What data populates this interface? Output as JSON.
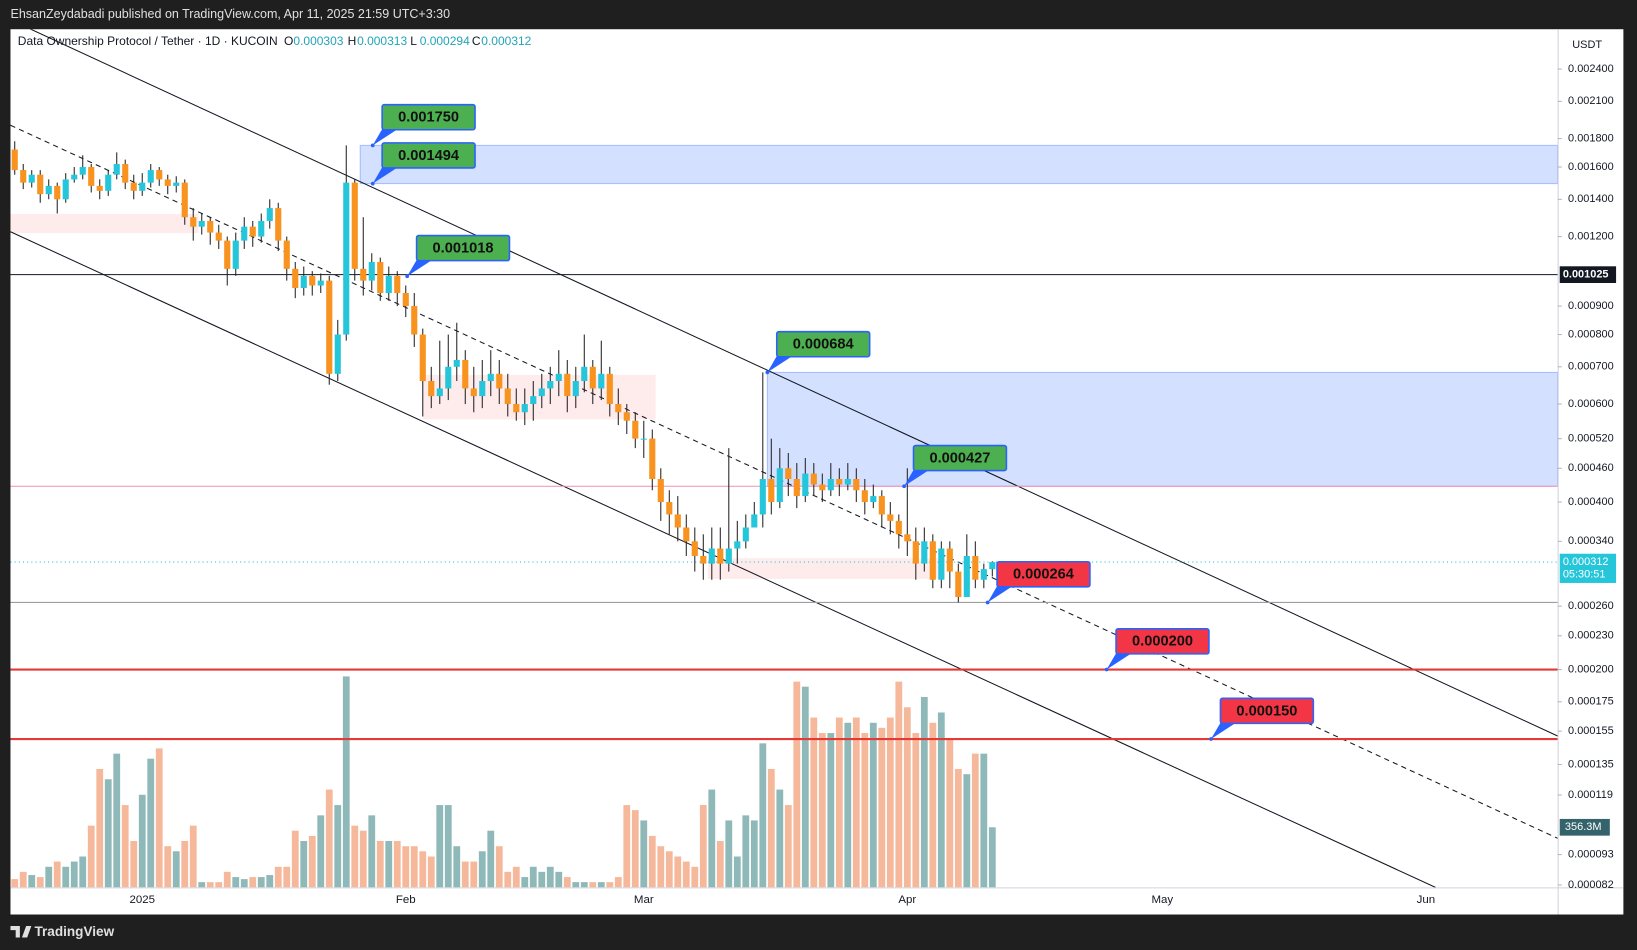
{
  "header": "EhsanZeydabadi published on TradingView.com, Apr 11, 2025 21:59 UTC+3:30",
  "footer": "TradingView",
  "chart_data": {
    "type": "candlestick",
    "symbol": "Data Ownership Protocol / Tether · 1D · KUCOIN",
    "ohlc_keys": [
      "O",
      "H",
      "L",
      "C"
    ],
    "currency": "USDT",
    "countdown": "05:30:51",
    "log_scale": true,
    "grid": false,
    "up_color": "#26c6da",
    "down_color": "#f7931e",
    "volume_up_color": "#8fb9b9",
    "volume_down_color": "#f6b89b",
    "ylim": [
      8.12e-05,
      0.00283
    ],
    "yticks": [
      {
        "value": 0.0024,
        "label": "0.002400"
      },
      {
        "value": 0.0021,
        "label": "0.002100"
      },
      {
        "value": 0.0018,
        "label": "0.001800"
      },
      {
        "value": 0.0016,
        "label": "0.001600"
      },
      {
        "value": 0.0014,
        "label": "0.001400"
      },
      {
        "value": 0.0012,
        "label": "0.001200"
      },
      {
        "value": 0.0009,
        "label": "0.000900"
      },
      {
        "value": 0.0008,
        "label": "0.000800"
      },
      {
        "value": 0.0007,
        "label": "0.000700"
      },
      {
        "value": 0.0006,
        "label": "0.000600"
      },
      {
        "value": 0.00052,
        "label": "0.000520"
      },
      {
        "value": 0.00046,
        "label": "0.000460"
      },
      {
        "value": 0.0004,
        "label": "0.000400"
      },
      {
        "value": 0.00034,
        "label": "0.000340"
      },
      {
        "value": 0.00026,
        "label": "0.000260"
      },
      {
        "value": 0.00023,
        "label": "0.000230"
      },
      {
        "value": 0.0002,
        "label": "0.000200"
      },
      0.000175,
      0.000155,
      0.000135,
      0.000119,
      9.3e-05,
      8.2e-05
    ],
    "volume_ylim": [
      0,
      1300
    ],
    "volume_label": "356.3M",
    "categories": [
      null,
      null,
      null,
      null,
      null,
      null,
      null,
      null,
      null,
      null,
      null,
      null,
      null,
      null,
      null,
      "2025",
      null,
      null,
      null,
      null,
      null,
      null,
      null,
      null,
      null,
      null,
      null,
      null,
      null,
      null,
      null,
      null,
      null,
      null,
      null,
      null,
      null,
      null,
      null,
      null,
      null,
      null,
      null,
      null,
      null,
      null,
      "Feb",
      null,
      null,
      null,
      null,
      null,
      null,
      null,
      null,
      null,
      null,
      null,
      null,
      null,
      null,
      null,
      null,
      null,
      null,
      null,
      null,
      null,
      null,
      null,
      null,
      null,
      null,
      null,
      "Mar",
      null,
      null,
      null,
      null,
      null,
      null,
      null,
      null,
      null,
      null,
      null,
      null,
      null,
      null,
      null,
      null,
      null,
      null,
      null,
      null,
      null,
      null,
      null,
      null,
      null,
      null,
      null,
      null,
      null,
      null,
      "Apr",
      null,
      null,
      null,
      null,
      null,
      null,
      null,
      null,
      null,
      null,
      null,
      null,
      null,
      null,
      null,
      null,
      null,
      null,
      null,
      null,
      null,
      null,
      null,
      null,
      null,
      null,
      null,
      null,
      null,
      "May",
      null,
      null,
      null,
      null,
      null,
      null,
      null,
      null,
      null,
      null,
      null,
      null,
      null,
      null,
      null,
      null,
      null,
      null,
      null,
      null,
      null,
      null,
      null,
      null,
      null,
      null,
      null,
      null,
      null,
      null,
      "Jun",
      null,
      null,
      null,
      null,
      null,
      null,
      null,
      null,
      null,
      null,
      null,
      null,
      null,
      null,
      null
    ],
    "open": [
      0.00172,
      0.00158,
      0.0015,
      0.00155,
      0.00143,
      0.00148,
      0.0014,
      0.00152,
      0.00155,
      0.0016,
      0.00148,
      0.00145,
      0.00155,
      0.00162,
      0.0015,
      0.00145,
      0.0015,
      0.00158,
      0.00152,
      0.00148,
      0.0015,
      0.0013,
      0.00125,
      0.00128,
      0.00122,
      0.00118,
      0.00105,
      0.00118,
      0.00125,
      0.0012,
      0.00128,
      0.00135,
      0.00118,
      0.00105,
      0.00097,
      0.00102,
      0.00098,
      0.001,
      0.00068,
      0.0008,
      0.0015,
      0.00105,
      0.001,
      0.00108,
      0.00095,
      0.00102,
      0.00095,
      0.0009,
      0.0008,
      0.00066,
      0.00062,
      0.00064,
      0.0007,
      0.00072,
      0.00064,
      0.00062,
      0.00066,
      0.00068,
      0.00064,
      0.0006,
      0.00058,
      0.0006,
      0.00062,
      0.00064,
      0.00066,
      0.00068,
      0.00062,
      0.00066,
      0.0007,
      0.00064,
      0.00068,
      0.0006,
      0.00058,
      0.00056,
      0.00052,
      0.00052,
      0.00044,
      0.0004,
      0.00038,
      0.00036,
      0.00034,
      0.00032,
      0.00031,
      0.00033,
      0.00031,
      0.00033,
      0.00034,
      0.00036,
      0.00038,
      0.00044,
      0.0004,
      0.00046,
      0.00044,
      0.00041,
      0.00045,
      0.00043,
      0.00042,
      0.00044,
      0.00043,
      0.00044,
      0.00042,
      0.0004,
      0.00041,
      0.00038,
      0.00037,
      0.00035,
      0.00034,
      0.00031,
      0.00034,
      0.00029,
      0.00033,
      0.0003,
      0.00027,
      0.00032,
      0.00029,
      0.000303,
      null,
      null,
      null,
      null,
      null,
      null,
      null,
      null,
      null,
      null,
      null,
      null,
      null,
      null,
      null,
      null,
      null,
      null,
      null,
      null,
      null,
      null,
      null,
      null,
      null,
      null,
      null,
      null,
      null,
      null,
      null,
      null,
      null,
      null,
      null,
      null,
      null,
      null,
      null,
      null,
      null,
      null,
      null,
      null,
      null,
      null,
      null,
      null,
      null,
      null,
      null,
      null,
      null,
      null,
      null,
      null,
      null,
      null,
      null,
      null,
      null,
      null,
      null,
      null,
      null,
      null
    ],
    "high": [
      0.00178,
      0.00162,
      0.00158,
      0.00158,
      0.00152,
      0.0015,
      0.00156,
      0.0016,
      0.00168,
      0.00162,
      0.00152,
      0.00158,
      0.0017,
      0.00165,
      0.00155,
      0.00156,
      0.00162,
      0.0016,
      0.00155,
      0.00154,
      0.00152,
      0.00135,
      0.00132,
      0.0013,
      0.00126,
      0.0012,
      0.00122,
      0.0013,
      0.00128,
      0.00132,
      0.0014,
      0.00138,
      0.0012,
      0.00108,
      0.00106,
      0.00104,
      0.00103,
      0.00102,
      0.00085,
      0.00175,
      0.00152,
      0.0013,
      0.00112,
      0.0011,
      0.00106,
      0.00104,
      0.00098,
      0.00095,
      0.00082,
      0.0007,
      0.00078,
      0.0008,
      0.00084,
      0.00075,
      0.0007,
      0.00072,
      0.00075,
      0.00072,
      0.00068,
      0.00064,
      0.00064,
      0.00066,
      0.00068,
      0.0007,
      0.00075,
      0.00072,
      0.0007,
      0.0008,
      0.00072,
      0.00078,
      0.0007,
      0.00064,
      0.0006,
      0.00058,
      0.00056,
      0.00054,
      0.00046,
      0.00042,
      0.00041,
      0.00038,
      0.00036,
      0.00035,
      0.00036,
      0.00036,
      0.0005,
      0.00037,
      0.00038,
      0.0004,
      0.000684,
      0.00052,
      0.0005,
      0.00049,
      0.00047,
      0.00048,
      0.00047,
      0.00045,
      0.00047,
      0.00046,
      0.00047,
      0.00046,
      0.00044,
      0.00043,
      0.00042,
      0.0004,
      0.00038,
      0.00046,
      0.00036,
      0.00036,
      0.00035,
      0.00034,
      0.00034,
      0.00031,
      0.00035,
      0.00034,
      0.00031,
      0.000313,
      null,
      null,
      null,
      null,
      null,
      null,
      null,
      null,
      null,
      null,
      null,
      null,
      null,
      null,
      null,
      null,
      null,
      null,
      null,
      null,
      null,
      null,
      null,
      null,
      null,
      null,
      null,
      null,
      null,
      null,
      null,
      null,
      null,
      null,
      null,
      null,
      null,
      null,
      null,
      null,
      null,
      null,
      null,
      null,
      null,
      null,
      null,
      null,
      null,
      null,
      null,
      null,
      null,
      null,
      null,
      null,
      null,
      null,
      null,
      null,
      null,
      null,
      null,
      null,
      null,
      null
    ],
    "low": [
      0.00155,
      0.00146,
      0.00147,
      0.00138,
      0.0014,
      0.00132,
      0.00138,
      0.0015,
      0.00152,
      0.00144,
      0.0014,
      0.00142,
      0.00152,
      0.00146,
      0.0014,
      0.00142,
      0.00147,
      0.00148,
      0.00143,
      0.00144,
      0.00126,
      0.00118,
      0.00121,
      0.00116,
      0.00114,
      0.00098,
      0.00102,
      0.00114,
      0.00115,
      0.00117,
      0.00124,
      0.00113,
      0.001,
      0.00093,
      0.00094,
      0.00094,
      0.00095,
      0.00065,
      0.00066,
      0.00078,
      0.001,
      0.00094,
      0.00096,
      0.00092,
      0.00092,
      0.0009,
      0.00086,
      0.00076,
      0.00057,
      0.00059,
      0.0006,
      0.00061,
      0.00066,
      0.0006,
      0.00058,
      0.00059,
      0.00062,
      0.0006,
      0.00057,
      0.00056,
      0.00055,
      0.00056,
      0.00059,
      0.0006,
      0.00062,
      0.00058,
      0.00059,
      0.00063,
      0.0006,
      0.00061,
      0.00057,
      0.00055,
      0.00053,
      0.0005,
      0.00048,
      0.00042,
      0.00037,
      0.00035,
      0.00034,
      0.00032,
      0.0003,
      0.00029,
      0.00029,
      0.00029,
      0.0003,
      0.00031,
      0.00033,
      0.00036,
      0.00036,
      0.00038,
      0.00039,
      0.00041,
      0.00039,
      0.0004,
      0.00041,
      0.0004,
      0.00041,
      0.00041,
      0.00042,
      0.0004,
      0.00038,
      0.00039,
      0.00036,
      0.00035,
      0.00033,
      0.00032,
      0.00029,
      0.0003,
      0.00028,
      0.00028,
      0.00028,
      0.000264,
      0.00027,
      0.00028,
      0.00028,
      0.000294,
      null,
      null,
      null,
      null,
      null,
      null,
      null,
      null,
      null,
      null,
      null,
      null,
      null,
      null,
      null,
      null,
      null,
      null,
      null,
      null,
      null,
      null,
      null,
      null,
      null,
      null,
      null,
      null,
      null,
      null,
      null,
      null,
      null,
      null,
      null,
      null,
      null,
      null,
      null,
      null,
      null,
      null,
      null,
      null,
      null,
      null,
      null,
      null,
      null,
      null,
      null,
      null,
      null,
      null,
      null,
      null,
      null,
      null,
      null,
      null,
      null,
      null,
      null,
      null,
      null,
      null
    ],
    "close": [
      0.00158,
      0.0015,
      0.00155,
      0.00143,
      0.00148,
      0.0014,
      0.00152,
      0.00155,
      0.0016,
      0.00148,
      0.00145,
      0.00155,
      0.00162,
      0.0015,
      0.00145,
      0.0015,
      0.00158,
      0.00152,
      0.00148,
      0.0015,
      0.0013,
      0.00125,
      0.00128,
      0.00122,
      0.00118,
      0.00105,
      0.00118,
      0.00125,
      0.0012,
      0.00128,
      0.00135,
      0.00118,
      0.00105,
      0.00097,
      0.00102,
      0.00098,
      0.001,
      0.00068,
      0.0008,
      0.0015,
      0.00105,
      0.001,
      0.00108,
      0.00095,
      0.00102,
      0.00095,
      0.0009,
      0.0008,
      0.00066,
      0.00062,
      0.00064,
      0.0007,
      0.00072,
      0.00064,
      0.00062,
      0.00066,
      0.00068,
      0.00064,
      0.0006,
      0.00058,
      0.0006,
      0.00062,
      0.00064,
      0.00066,
      0.00068,
      0.00062,
      0.00066,
      0.0007,
      0.00064,
      0.00068,
      0.0006,
      0.00058,
      0.00056,
      0.00052,
      0.00052,
      0.00044,
      0.0004,
      0.00038,
      0.00036,
      0.00034,
      0.00032,
      0.00031,
      0.00033,
      0.00031,
      0.00033,
      0.00034,
      0.00036,
      0.00038,
      0.00044,
      0.0004,
      0.00046,
      0.00044,
      0.00041,
      0.00045,
      0.00043,
      0.00042,
      0.00044,
      0.00043,
      0.00044,
      0.00042,
      0.0004,
      0.00041,
      0.00038,
      0.00037,
      0.00035,
      0.00034,
      0.00031,
      0.00034,
      0.00029,
      0.00033,
      0.0003,
      0.00027,
      0.00032,
      0.00029,
      0.000303,
      0.000312,
      null,
      null,
      null,
      null,
      null,
      null,
      null,
      null,
      null,
      null,
      null,
      null,
      null,
      null,
      null,
      null,
      null,
      null,
      null,
      null,
      null,
      null,
      null,
      null,
      null,
      null,
      null,
      null,
      null,
      null,
      null,
      null,
      null,
      null,
      null,
      null,
      null,
      null,
      null,
      null,
      null,
      null,
      null,
      null,
      null,
      null,
      null,
      null,
      null,
      null,
      null,
      null,
      null,
      null,
      null,
      null,
      null,
      null,
      null,
      null,
      null,
      null,
      null,
      null,
      null,
      null
    ],
    "volume": [
      49,
      92,
      73,
      61,
      122,
      153,
      122,
      153,
      183,
      366,
      702,
      641,
      793,
      488,
      275,
      549,
      763,
      824,
      244,
      214,
      275,
      366,
      31,
      31,
      31,
      92,
      61,
      49,
      61,
      61,
      73,
      122,
      122,
      336,
      275,
      305,
      427,
      580,
      488,
      1251,
      366,
      336,
      427,
      275,
      275,
      275,
      244,
      244,
      214,
      183,
      488,
      488,
      244,
      153,
      153,
      214,
      336,
      244,
      92,
      122,
      61,
      122,
      92,
      122,
      92,
      61,
      31,
      31,
      31,
      31,
      31,
      61,
      488,
      458,
      397,
      305,
      244,
      214,
      183,
      153,
      122,
      488,
      580,
      275,
      397,
      183,
      427,
      397,
      854,
      702,
      580,
      488,
      1220,
      1190,
      1007,
      915,
      915,
      1007,
      976,
      1007,
      915,
      976,
      946,
      1007,
      1220,
      1068,
      915,
      1129,
      976,
      1037,
      885,
      702,
      671,
      793,
      793,
      356.3,
      null,
      null,
      null,
      null,
      null,
      null,
      null,
      null,
      null,
      null,
      null,
      null,
      null,
      null,
      null,
      null,
      null,
      null,
      null,
      null,
      null,
      null,
      null,
      null,
      null,
      null,
      null,
      null,
      null,
      null,
      null,
      null,
      null,
      null,
      null,
      null,
      null,
      null,
      null,
      null,
      null,
      null,
      null,
      null,
      null,
      null,
      null,
      null,
      null,
      null,
      null,
      null,
      null,
      null,
      null,
      null,
      null,
      null,
      null,
      null,
      null,
      null,
      null,
      null,
      null,
      null
    ],
    "levels": [
      {
        "value": 0.001025,
        "color": "#131722"
      }
    ],
    "annotations": [
      {
        "value": 0.00175,
        "label": "0.001750",
        "color": "#4caf50"
      },
      {
        "value": 0.001494,
        "label": "0.001494",
        "color": "#4caf50"
      },
      {
        "value": 0.001018,
        "label": "0.001018",
        "color": "#4caf50"
      },
      {
        "value": 0.000684,
        "label": "0.000684",
        "color": "#4caf50"
      },
      {
        "value": 0.000427,
        "label": "0.000427",
        "color": "#4caf50",
        "line_color": "#f48fb1"
      },
      {
        "value": 0.000264,
        "label": "0.000264",
        "color": "#f23645",
        "line_color": "#9e9e9e"
      },
      {
        "value": 0.0002,
        "label": "0.000200",
        "color": "#f23645",
        "line_color": "#e53935"
      },
      {
        "value": 0.00015,
        "label": "0.000150",
        "color": "#f23645",
        "line_color": "#e53935"
      }
    ],
    "supply_zones": [
      {
        "high": 0.001318,
        "low": 0.001218
      },
      {
        "high": 0.000677,
        "low": 0.000563
      },
      {
        "high": 0.000317,
        "low": 0.000291
      }
    ]
  }
}
